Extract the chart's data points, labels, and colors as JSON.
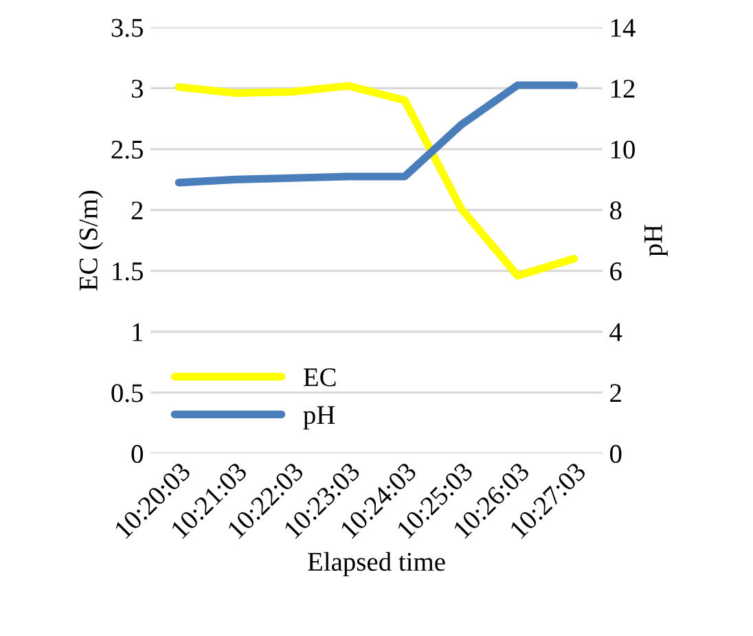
{
  "chart_data": {
    "type": "line",
    "xlabel": "Elapsed time",
    "ylabel": "EC (S/m)",
    "y2label": "pH",
    "categories": [
      "10:20:03",
      "10:21:03",
      "10:22:03",
      "10:23:03",
      "10:24:03",
      "10:25:03",
      "10:26:03",
      "10:27:03"
    ],
    "series": [
      {
        "name": "EC",
        "color": "#ffff00",
        "values": [
          3.01,
          2.96,
          2.97,
          3.02,
          2.9,
          2.01,
          1.46,
          1.6
        ]
      },
      {
        "name": "pH",
        "color": "#4a7ebb",
        "axis": "y2",
        "values": [
          8.9,
          9.0,
          9.05,
          9.1,
          9.1,
          10.8,
          12.1,
          12.1
        ]
      }
    ],
    "ylim": [
      0,
      3.5
    ],
    "yticks": [
      0,
      0.5,
      1,
      1.5,
      2,
      2.5,
      3,
      3.5
    ],
    "y2lim": [
      0,
      14
    ],
    "y2ticks": [
      0,
      2,
      4,
      6,
      8,
      10,
      12,
      14
    ],
    "grid": "y",
    "legend": "bottom left",
    "marker": "none",
    "line_style": "solid"
  }
}
